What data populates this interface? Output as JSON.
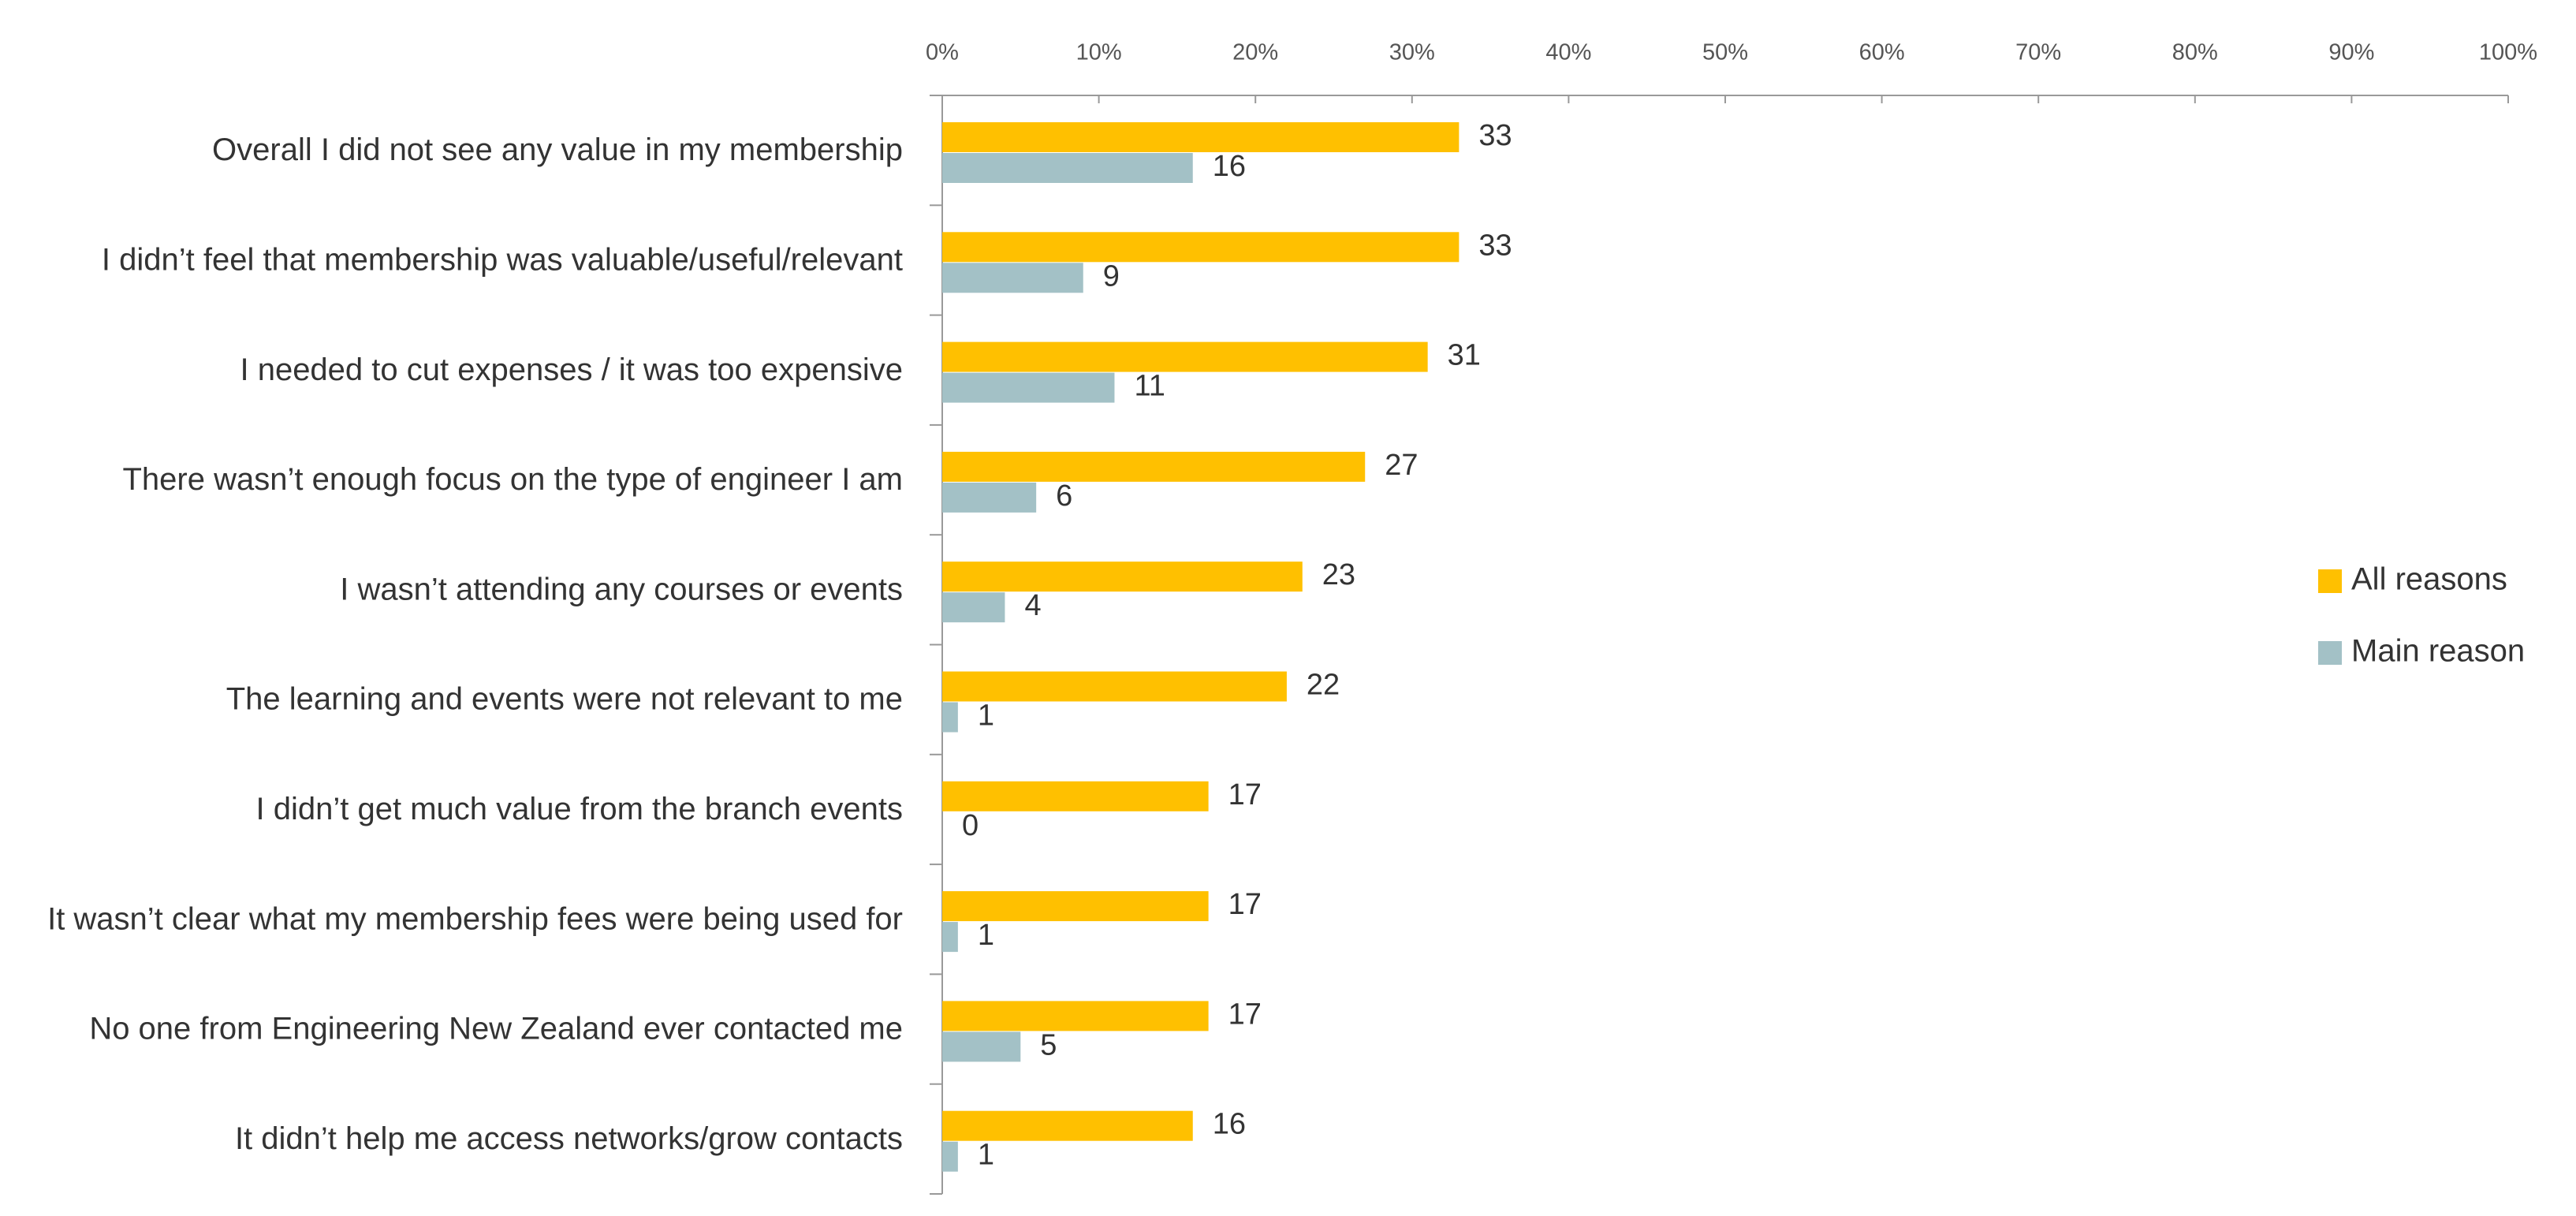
{
  "chart_data": {
    "type": "bar",
    "orientation": "horizontal",
    "categories": [
      "Overall I did not see any value in my membership",
      "I didn’t feel that membership was valuable/useful/relevant",
      "I needed to cut expenses / it was too expensive",
      "There wasn’t enough focus on the type of engineer I am",
      "I wasn’t attending any courses or events",
      "The learning and events were not relevant to me",
      "I didn’t get much value from the branch events",
      "It wasn’t clear what my membership fees were being used for",
      "No one from Engineering New Zealand ever contacted me",
      "It didn’t help me access networks/grow contacts"
    ],
    "series": [
      {
        "name": "All reasons",
        "color": "#ffc000",
        "values": [
          33,
          33,
          31,
          27,
          23,
          22,
          17,
          17,
          17,
          16
        ]
      },
      {
        "name": "Main reason",
        "color": "#a3c1c6",
        "values": [
          16,
          9,
          11,
          6,
          4,
          1,
          0,
          1,
          5,
          1
        ]
      }
    ],
    "xlim": [
      0,
      100
    ],
    "xticks": [
      {
        "value": 0,
        "label": "0%"
      },
      {
        "value": 10,
        "label": "10%"
      },
      {
        "value": 20,
        "label": "20%"
      },
      {
        "value": 30,
        "label": "30%"
      },
      {
        "value": 40,
        "label": "40%"
      },
      {
        "value": 50,
        "label": "50%"
      },
      {
        "value": 60,
        "label": "60%"
      },
      {
        "value": 70,
        "label": "70%"
      },
      {
        "value": 80,
        "label": "80%"
      },
      {
        "value": 90,
        "label": "90%"
      },
      {
        "value": 100,
        "label": "100%"
      }
    ],
    "legend": "right"
  }
}
